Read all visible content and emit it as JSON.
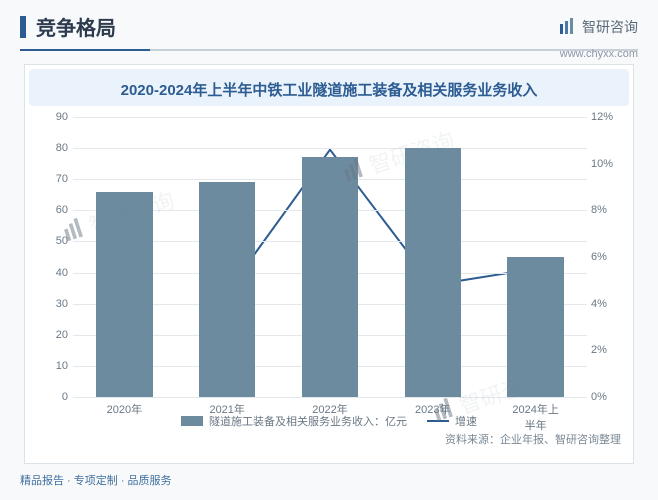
{
  "header": {
    "title": "竞争格局",
    "brand": "智研咨询",
    "url": "www.chyxx.com"
  },
  "chart": {
    "type": "bar+line",
    "title": "2020-2024年上半年中铁工业隧道施工装备及相关服务业务收入",
    "categories": [
      "2020年",
      "2021年",
      "2022年",
      "2023年",
      "2024年上半年"
    ],
    "bars": {
      "label": "隧道施工装备及相关服务业务收入：亿元",
      "values": [
        66,
        69,
        77,
        80,
        45
      ],
      "color": "#6d8b9e"
    },
    "line": {
      "label": "增速",
      "values": [
        null,
        4.5,
        10.6,
        4.8,
        5.5
      ],
      "color": "#2d5c92"
    },
    "y_left": {
      "min": 0,
      "max": 90,
      "step": 10,
      "color": "#6a7885",
      "fontsize": 11
    },
    "y_right": {
      "min": 0,
      "max": 12,
      "step": 2,
      "suffix": "%",
      "color": "#6a7885",
      "fontsize": 11
    },
    "grid_color": "#e3e8ed",
    "background_color": "#ffffff",
    "bar_width_ratio": 0.55,
    "title_fontsize": 15,
    "title_color": "#2d5c92",
    "source": "资料来源：企业年报、智研咨询整理"
  },
  "footer": "精品报告 · 专项定制 · 品质服务",
  "watermark": "智研咨询"
}
